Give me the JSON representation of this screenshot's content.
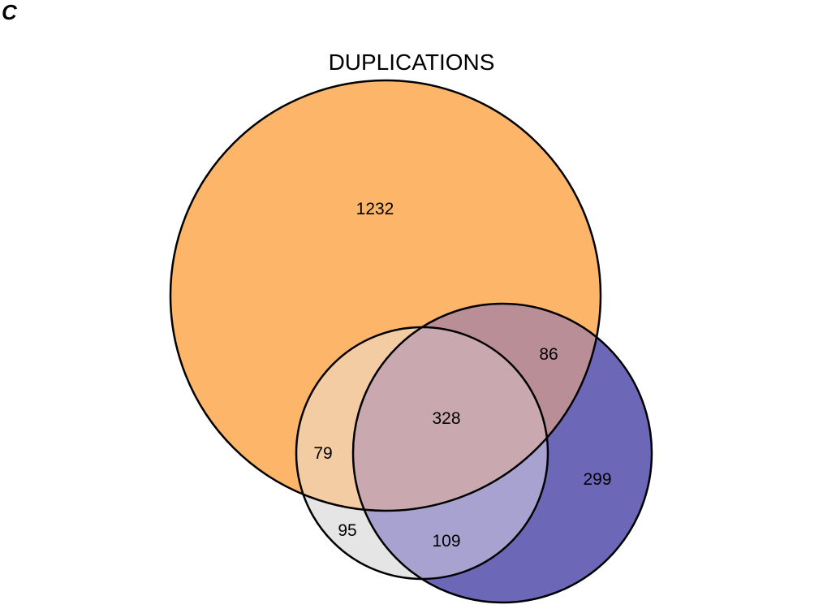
{
  "panel_label": "C",
  "title": "DUPLICATIONS",
  "colors": {
    "set_a": "#fdb56a",
    "set_b": "#e5e5e5",
    "set_c": "#6c67b7",
    "a_b": "#f4cca3",
    "a_c": "#b98e97",
    "b_c": "#a7a2cf",
    "a_b_c": "#c9a8b0",
    "outline": "#000000"
  },
  "regions": {
    "a_only": "1232",
    "a_b": "79",
    "b_only": "95",
    "a_b_c": "328",
    "a_c": "86",
    "b_c": "109",
    "c_only": "299"
  }
}
